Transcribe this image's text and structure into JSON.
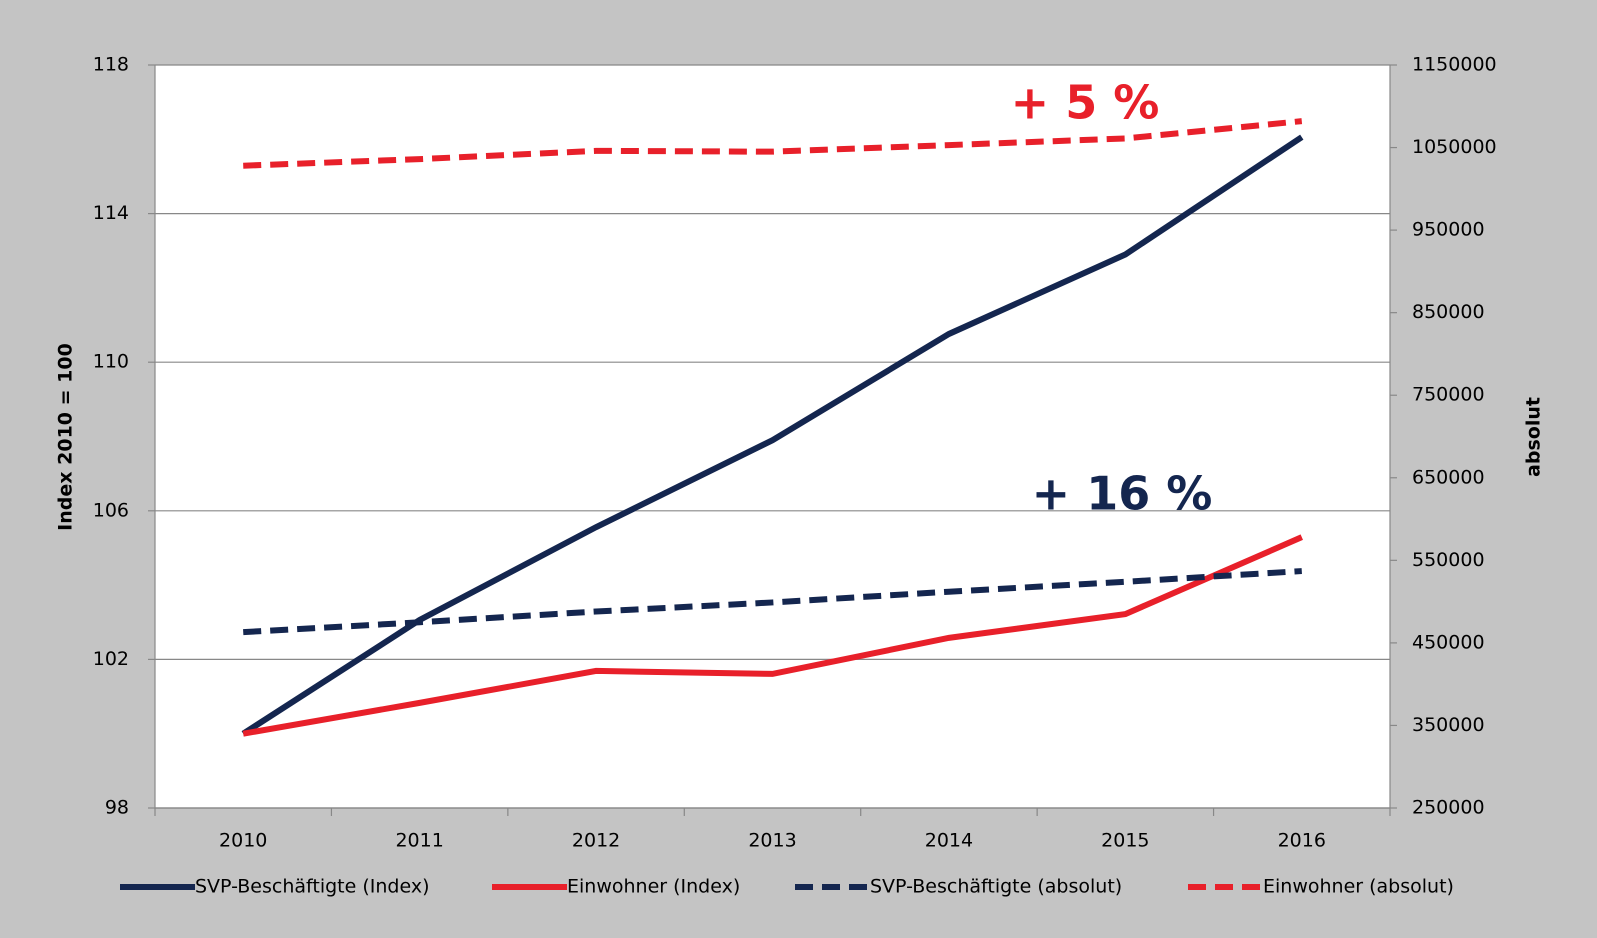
{
  "chart_data": {
    "type": "line",
    "categories": [
      "2010",
      "2011",
      "2012",
      "2013",
      "2014",
      "2015",
      "2016"
    ],
    "series": [
      {
        "name": "SVP-Beschäftigte (Index)",
        "color": "#14264f",
        "dashed": false,
        "values": [
          100,
          103.06,
          105.56,
          107.9,
          110.76,
          112.9,
          116.06
        ]
      },
      {
        "name": "Einwohner (Index)",
        "color": "#e8202a",
        "dashed": false,
        "values": [
          100,
          100.83,
          101.69,
          101.61,
          102.58,
          103.22,
          105.29
        ]
      },
      {
        "name": "SVP-Beschäftigte (absolut)",
        "color": "#14264f",
        "dashed": true,
        "axis": "y2",
        "values": [
          463000,
          475000,
          488000,
          499000,
          512000,
          524000,
          537000
        ]
      },
      {
        "name": "Einwohner (absolut)",
        "color": "#e8202a",
        "dashed": true,
        "axis": "y2",
        "values": [
          1028000,
          1036000,
          1046000,
          1045000,
          1053000,
          1061000,
          1082000
        ]
      }
    ],
    "ylabel": "Index 2010 = 100",
    "y2label": "absolut",
    "ylim": [
      98,
      118
    ],
    "yticks": [
      98,
      102,
      106,
      110,
      114,
      118
    ],
    "y2lim": [
      250000,
      1150000
    ],
    "y2ticks": [
      250000,
      350000,
      450000,
      550000,
      650000,
      750000,
      850000,
      950000,
      1050000,
      1150000
    ],
    "grid": true,
    "legend": "bottom",
    "annotations": [
      {
        "text": "+ 5 %",
        "color": "#e8202a"
      },
      {
        "text": "+ 16 %",
        "color": "#14264f"
      }
    ]
  }
}
